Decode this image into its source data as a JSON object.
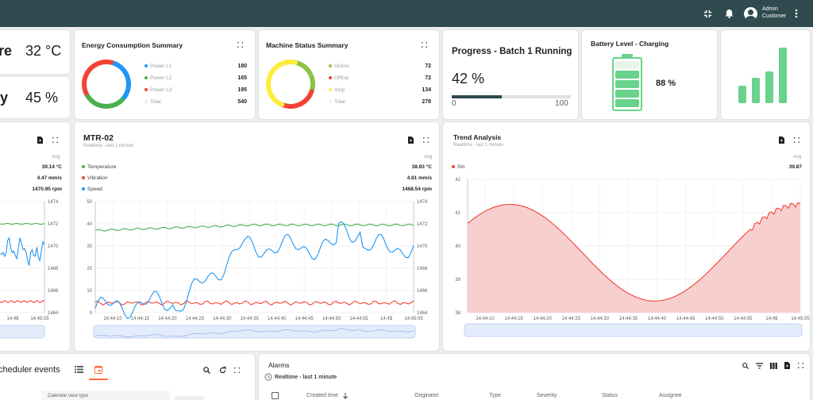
{
  "topbar": {
    "user_name": "Admin",
    "user_role": "Customer",
    "icons": [
      "fullscreen-exit-icon",
      "bell-icon",
      "account-icon",
      "more-vert-icon"
    ]
  },
  "tiles": {
    "temperature": {
      "label_fragment": "re",
      "value": "32 °C"
    },
    "humidity": {
      "label_fragment": "y",
      "value": "45 %"
    }
  },
  "energy": {
    "title": "Energy Consumption Summary",
    "items": [
      {
        "label": "Power L1",
        "value": "180",
        "color": "#2196f3"
      },
      {
        "label": "Power L2",
        "value": "165",
        "color": "#4caf50"
      },
      {
        "label": "Power L3",
        "value": "195",
        "color": "#f44336"
      },
      {
        "label": "Total",
        "value": "540",
        "color": "#eeeeee"
      }
    ]
  },
  "machine": {
    "title": "Machine Status Summary",
    "items": [
      {
        "label": "Online",
        "value": "72",
        "color": "#8bc34a"
      },
      {
        "label": "Offline",
        "value": "72",
        "color": "#f44336"
      },
      {
        "label": "Stop",
        "value": "134",
        "color": "#ffeb3b"
      },
      {
        "label": "Total",
        "value": "278",
        "color": "#eeeeee"
      }
    ]
  },
  "progress": {
    "title": "Progress - Batch 1 Running",
    "value": "42 %",
    "fraction": 0.42,
    "min": "0",
    "max": "100"
  },
  "battery": {
    "title": "Battery Level - Charging",
    "value": "88 %",
    "level": 0.88
  },
  "signal": {
    "bars_active": 4,
    "bars_total": 4
  },
  "ts_left": {
    "avg_label": "Avg",
    "values": [
      "39.14 °C",
      "4.47 mm/s",
      "1470.95 rpm"
    ],
    "y2_ticks": [
      "1474",
      "1472",
      "1470",
      "1468",
      "1466",
      "1464"
    ],
    "x_ticks": [
      "14:4$",
      "14:45:05"
    ]
  },
  "mtr": {
    "title": "MTR-02",
    "subtitle": "Realtime - last 1 minute",
    "avg_label": "Avg",
    "series": [
      {
        "name": "Temperature",
        "avg": "38.93 °C",
        "color": "#4caf50"
      },
      {
        "name": "Vibration",
        "avg": "4.81 mm/s",
        "color": "#f44336"
      },
      {
        "name": "Speed",
        "avg": "1468.54 rpm",
        "color": "#2196f3"
      }
    ],
    "y_ticks": [
      "50",
      "40",
      "30",
      "20",
      "10",
      "0"
    ],
    "y2_ticks": [
      "1474",
      "1472",
      "1470",
      "1468",
      "1466",
      "1464"
    ],
    "x_ticks": [
      "14:44:10",
      "14:44:15",
      "14:44:20",
      "14:44:25",
      "14:44:30",
      "14:44:35",
      "14:44:40",
      "14:44:45",
      "14:44:50",
      "14:44:55",
      "14:4$",
      "14:45:05"
    ]
  },
  "trend": {
    "title": "Trend Analysis",
    "subtitle": "Realtime - last 1 minute",
    "avg_label": "Avg",
    "series": [
      {
        "name": "Sin",
        "avg": "39.87",
        "color": "#f44336"
      }
    ],
    "y_ticks": [
      "42",
      "41",
      "40",
      "39",
      "38"
    ],
    "x_ticks": [
      "14:44:10",
      "14:44:15",
      "14:44:20",
      "14:44:25",
      "14:44:30",
      "14:44:35",
      "14:44:40",
      "14:44:45",
      "14:44:50",
      "14:44:55",
      "14:4$",
      "14:45:05"
    ]
  },
  "scheduler": {
    "title_fragment": "cheduler events",
    "calendar_view_label": "Calendar view type"
  },
  "alarms": {
    "title": "Alarms",
    "timewindow": "Realtime - last 1 minute",
    "columns": [
      "Created time",
      "Originator",
      "Type",
      "Severity",
      "Status",
      "Assignee"
    ]
  }
}
